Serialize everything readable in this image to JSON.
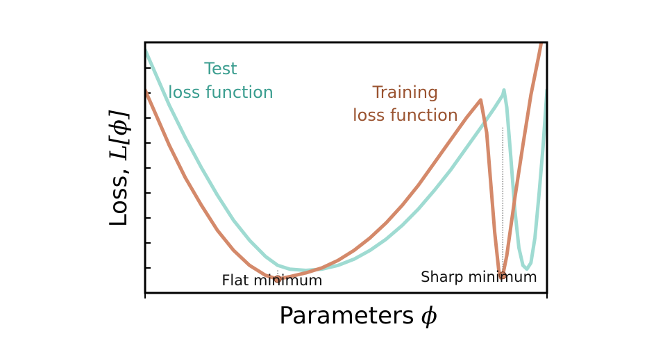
{
  "chart_data": {
    "type": "line",
    "title": "",
    "xlabel": "Parameters",
    "xlabel_symbol": "ϕ",
    "ylabel": "Loss, ",
    "ylabel_math": "L[ϕ]",
    "xlim": [
      0,
      1
    ],
    "ylim": [
      0,
      1
    ],
    "grid": false,
    "legend": "none",
    "series": [
      {
        "name": "Test loss function",
        "label_lines": [
          "Test",
          "loss function"
        ],
        "color": "#9fdbd2",
        "x": [
          0.0,
          0.03,
          0.06,
          0.1,
          0.14,
          0.18,
          0.22,
          0.26,
          0.3,
          0.33,
          0.36,
          0.4,
          0.44,
          0.48,
          0.52,
          0.56,
          0.6,
          0.64,
          0.68,
          0.72,
          0.76,
          0.8,
          0.84,
          0.87,
          0.89,
          0.893,
          0.9,
          0.91,
          0.92,
          0.93,
          0.94,
          0.95,
          0.96,
          0.97,
          0.98,
          0.99,
          1.0
        ],
        "y": [
          0.97,
          0.86,
          0.75,
          0.62,
          0.5,
          0.39,
          0.29,
          0.21,
          0.145,
          0.11,
          0.095,
          0.09,
          0.095,
          0.11,
          0.135,
          0.17,
          0.215,
          0.27,
          0.335,
          0.41,
          0.49,
          0.58,
          0.67,
          0.74,
          0.79,
          0.81,
          0.74,
          0.54,
          0.33,
          0.18,
          0.11,
          0.095,
          0.12,
          0.22,
          0.39,
          0.58,
          0.81
        ]
      },
      {
        "name": "Training loss function",
        "label_lines": [
          "Training",
          "loss function"
        ],
        "color": "#d4896a",
        "x": [
          0.0,
          0.03,
          0.06,
          0.1,
          0.14,
          0.18,
          0.22,
          0.26,
          0.3,
          0.33,
          0.36,
          0.4,
          0.44,
          0.48,
          0.52,
          0.56,
          0.6,
          0.64,
          0.68,
          0.72,
          0.76,
          0.8,
          0.83,
          0.835,
          0.85,
          0.86,
          0.87,
          0.88,
          0.885,
          0.89,
          0.9,
          0.92,
          0.94,
          0.96,
          0.98,
          1.0
        ],
        "y": [
          0.81,
          0.7,
          0.59,
          0.46,
          0.35,
          0.25,
          0.17,
          0.11,
          0.07,
          0.055,
          0.065,
          0.08,
          0.1,
          0.13,
          0.17,
          0.22,
          0.28,
          0.35,
          0.43,
          0.52,
          0.61,
          0.7,
          0.76,
          0.77,
          0.64,
          0.44,
          0.24,
          0.09,
          0.06,
          0.07,
          0.15,
          0.38,
          0.59,
          0.79,
          0.95,
          1.12
        ]
      }
    ],
    "annotations": [
      {
        "name": "flat-minimum",
        "text": "Flat minimum",
        "x": 0.33,
        "y": 0.055,
        "ref_y": 0.09,
        "marker_color": "#d4896a"
      },
      {
        "name": "sharp-minimum",
        "text": "Sharp minimum",
        "x": 0.89,
        "y": 0.07,
        "ref_y": 0.66,
        "marker_color": "#d4896a"
      }
    ]
  }
}
